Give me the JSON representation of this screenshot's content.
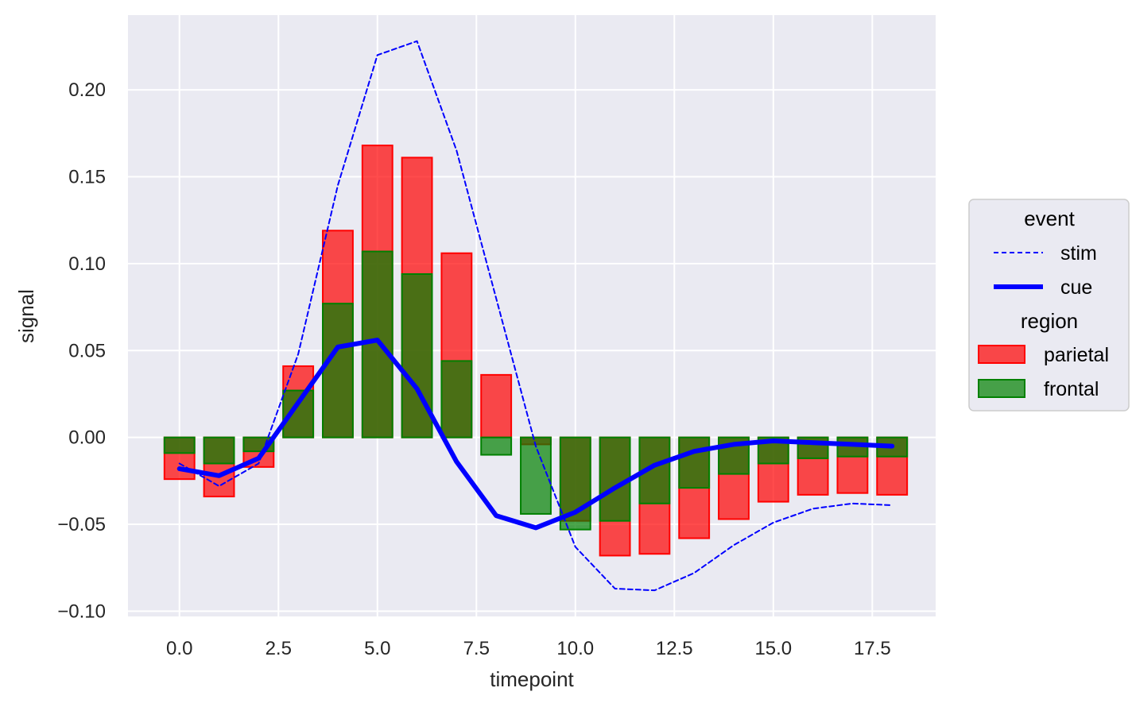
{
  "chart_data": {
    "type": "bar",
    "xlabel": "timepoint",
    "ylabel": "signal",
    "xlim": [
      -1.3,
      19.1
    ],
    "ylim": [
      -0.103,
      0.243
    ],
    "xticks": [
      0,
      2.5,
      5,
      7.5,
      10,
      12.5,
      15,
      17.5
    ],
    "xtick_labels": [
      "0.0",
      "2.5",
      "5.0",
      "7.5",
      "10.0",
      "12.5",
      "15.0",
      "17.5"
    ],
    "yticks": [
      -0.1,
      -0.05,
      0.0,
      0.05,
      0.1,
      0.15,
      0.2
    ],
    "ytick_labels": [
      "−0.10",
      "−0.05",
      "0.00",
      "0.05",
      "0.10",
      "0.15",
      "0.20"
    ],
    "grid": true,
    "background": "#eaeaf2",
    "legend_position": "right",
    "x": [
      0,
      1,
      2,
      3,
      4,
      5,
      6,
      7,
      8,
      9,
      10,
      11,
      12,
      13,
      14,
      15,
      16,
      17,
      18
    ],
    "bar_series": [
      {
        "name": "parietal",
        "color": "#ff0000",
        "values": [
          -0.024,
          -0.034,
          -0.017,
          0.041,
          0.119,
          0.168,
          0.161,
          0.106,
          0.036,
          -0.004,
          -0.048,
          -0.068,
          -0.067,
          -0.058,
          -0.047,
          -0.037,
          -0.033,
          -0.032,
          -0.033
        ]
      },
      {
        "name": "frontal",
        "color": "#008000",
        "values": [
          -0.009,
          -0.015,
          -0.008,
          0.027,
          0.077,
          0.107,
          0.094,
          0.044,
          -0.01,
          -0.044,
          -0.053,
          -0.048,
          -0.038,
          -0.029,
          -0.021,
          -0.015,
          -0.012,
          -0.011,
          -0.011
        ]
      }
    ],
    "line_series": [
      {
        "name": "stim",
        "color": "#0000ff",
        "style": "dashed",
        "values": [
          -0.015,
          -0.028,
          -0.015,
          0.048,
          0.145,
          0.22,
          0.228,
          0.165,
          0.08,
          -0.005,
          -0.063,
          -0.087,
          -0.088,
          -0.078,
          -0.062,
          -0.049,
          -0.041,
          -0.038,
          -0.039
        ]
      },
      {
        "name": "cue",
        "color": "#0000ff",
        "style": "solid",
        "values": [
          -0.018,
          -0.022,
          -0.012,
          0.02,
          0.052,
          0.056,
          0.028,
          -0.014,
          -0.045,
          -0.052,
          -0.043,
          -0.029,
          -0.016,
          -0.008,
          -0.004,
          -0.002,
          -0.003,
          -0.004,
          -0.005
        ]
      }
    ]
  },
  "legend": {
    "event_title": "event",
    "stim_label": "stim",
    "cue_label": "cue",
    "region_title": "region",
    "parietal_label": "parietal",
    "frontal_label": "frontal"
  }
}
